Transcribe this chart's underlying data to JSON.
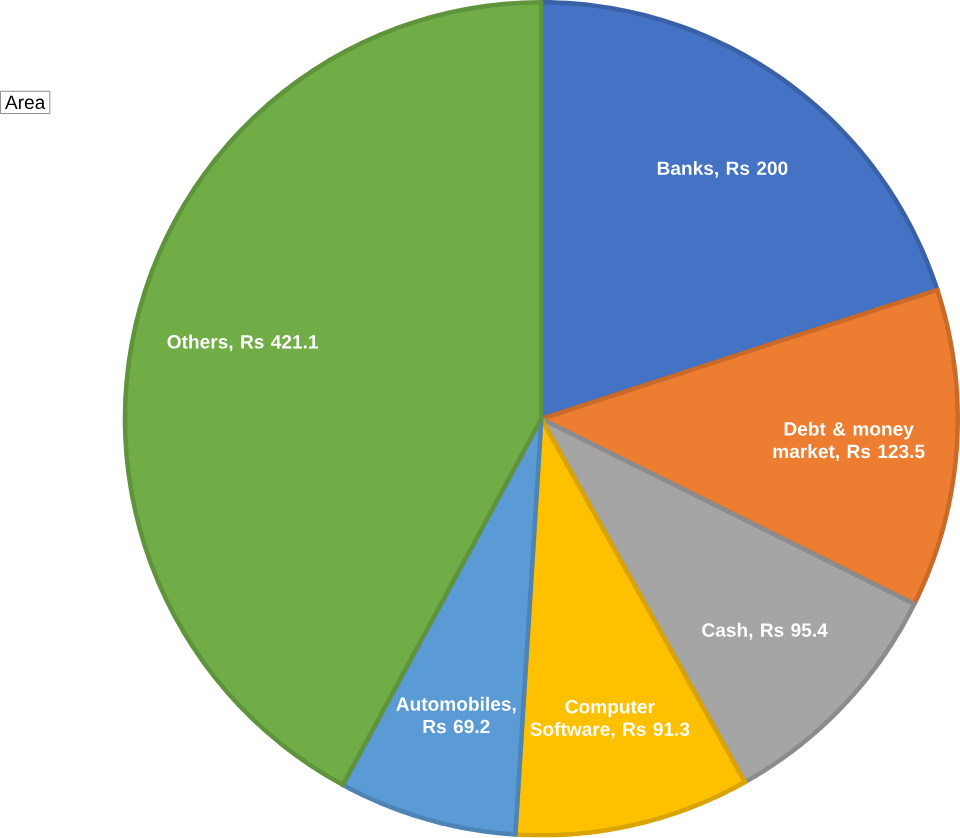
{
  "chart_data": {
    "type": "pie",
    "categories": [
      "Banks, Rs 200",
      "Debt & money market, Rs 123.5",
      "Cash, Rs 95.4",
      "Computer Software, Rs 91.3",
      "Automobiles, Rs 69.2",
      "Others, Rs 421.1"
    ],
    "values": [
      200,
      123.5,
      95.4,
      91.3,
      69.2,
      421.1
    ],
    "colors": [
      "#4472c4",
      "#ed7d31",
      "#a5a5a5",
      "#ffc000",
      "#5b9bd5",
      "#70ad47"
    ],
    "annotations": [
      "Area"
    ]
  }
}
